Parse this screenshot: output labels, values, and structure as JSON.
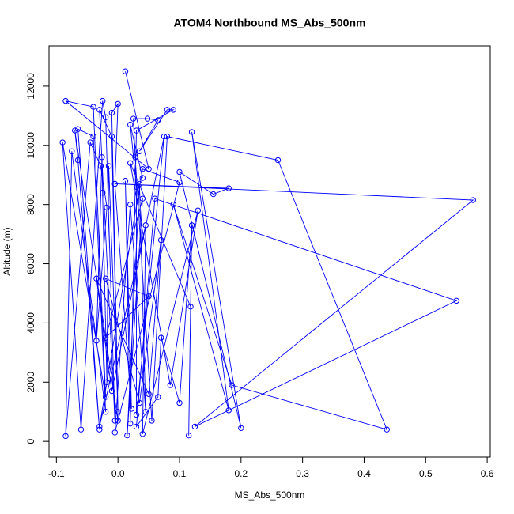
{
  "chart_data": {
    "type": "line",
    "title": "ATOM4 Northbound MS_Abs_500nm",
    "x_label": "MS_Abs_500nm",
    "y_label": "Altitude (m)",
    "x": [
      0.012,
      0.05,
      -0.085,
      -0.04,
      -0.02,
      -0.09,
      -0.06,
      -0.025,
      -0.02,
      -0.005,
      -0.03,
      -0.01,
      0.0,
      -0.07,
      -0.065,
      -0.03,
      -0.065,
      -0.04,
      -0.02,
      -0.075,
      -0.085,
      -0.045,
      -0.028,
      -0.018,
      -0.035,
      -0.026,
      -0.025,
      -0.018,
      -0.015,
      0.0,
      -0.01,
      0.0,
      -0.005,
      0.022,
      0.012,
      0.02,
      0.03,
      0.09,
      0.08,
      0.035,
      0.065,
      0.048,
      0.025,
      0.028,
      0.055,
      0.08,
      0.26,
      0.437,
      0.185,
      0.09,
      0.18,
      0.12,
      0.2,
      0.1,
      0.155,
      0.18,
      -0.005,
      0.577,
      0.125,
      0.55,
      0.06,
      0.03,
      0.065,
      0.07,
      0.1,
      0.12,
      0.115,
      0.118,
      0.02,
      0.085,
      0.13,
      0.04,
      0.045,
      -0.03,
      0.04,
      0.1,
      -0.005,
      0.02,
      0.045,
      0.035,
      0.015,
      0.04,
      -0.02,
      0.05,
      -0.02,
      0.035,
      0.07,
      0.05,
      -0.035,
      -0.01,
      0.075,
      0.03,
      0.03,
      0.02,
      0.04
    ],
    "values": [
      12500,
      9200,
      11500,
      11300,
      1500,
      10100,
      400,
      11500,
      10950,
      700,
      11200,
      10300,
      700,
      10500,
      9500,
      400,
      10550,
      10300,
      1000,
      9800,
      180,
      10100,
      9300,
      7900,
      3400,
      9600,
      8400,
      2000,
      9300,
      1000,
      11100,
      11400,
      8700,
      1100,
      8800,
      600,
      10500,
      11200,
      11200,
      9800,
      10850,
      10900,
      10900,
      9600,
      700,
      10300,
      9500,
      400,
      1900,
      8000,
      1050,
      10450,
      450,
      9100,
      8350,
      8550,
      8700,
      8150,
      500,
      4750,
      8200,
      500,
      1500,
      3500,
      1300,
      7300,
      200,
      4550,
      9400,
      1900,
      7800,
      250,
      7300,
      500,
      9200,
      8750,
      300,
      8000,
      1000,
      8700,
      200,
      8200,
      3500,
      4900,
      5500,
      1300,
      6800,
      1600,
      5500,
      1700,
      10300,
      900,
      8600,
      10700,
      8900
    ],
    "color": "#0000ff",
    "xlim": [
      -0.112,
      0.605
    ],
    "ylim": [
      -530,
      13360
    ],
    "xticks": [
      -0.1,
      {
        "value": 0,
        "label": "0.0"
      },
      0.1,
      0.2,
      0.3,
      0.4,
      0.5,
      0.6
    ],
    "yticks": [
      0,
      2000,
      4000,
      6000,
      8000,
      10000,
      12000
    ]
  }
}
